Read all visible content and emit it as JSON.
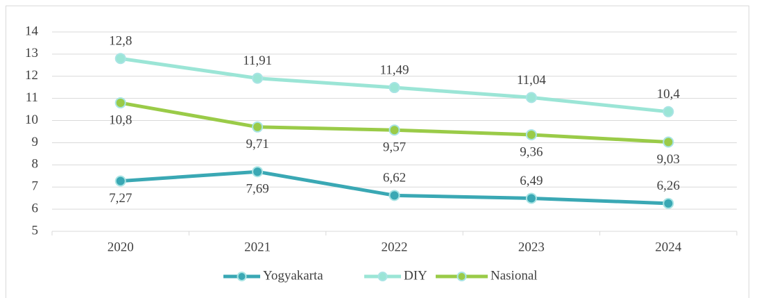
{
  "chart_data": {
    "type": "line",
    "categories": [
      "2020",
      "2021",
      "2022",
      "2023",
      "2024"
    ],
    "series": [
      {
        "name": "Yogyakarta",
        "color": "#3aa8b4",
        "values": [
          7.27,
          7.69,
          6.62,
          6.49,
          6.26
        ],
        "value_labels": [
          "7,27",
          "7,69",
          "6,62",
          "6,49",
          "6,26"
        ]
      },
      {
        "name": "DIY",
        "color": "#9be5d6",
        "values": [
          12.8,
          11.91,
          11.49,
          11.04,
          10.4
        ],
        "value_labels": [
          "12,8",
          "11,91",
          "11,49",
          "11,04",
          "10,4"
        ]
      },
      {
        "name": "Nasional",
        "color": "#9acb48",
        "values": [
          10.8,
          9.71,
          9.57,
          9.36,
          9.03
        ],
        "value_labels": [
          "10,8",
          "9,71",
          "9,57",
          "9,36",
          "9,03"
        ]
      }
    ],
    "ylim": [
      5,
      14
    ],
    "yticks": [
      5,
      6,
      7,
      8,
      9,
      10,
      11,
      12,
      13,
      14
    ],
    "grid": true,
    "legend": "bottom"
  }
}
